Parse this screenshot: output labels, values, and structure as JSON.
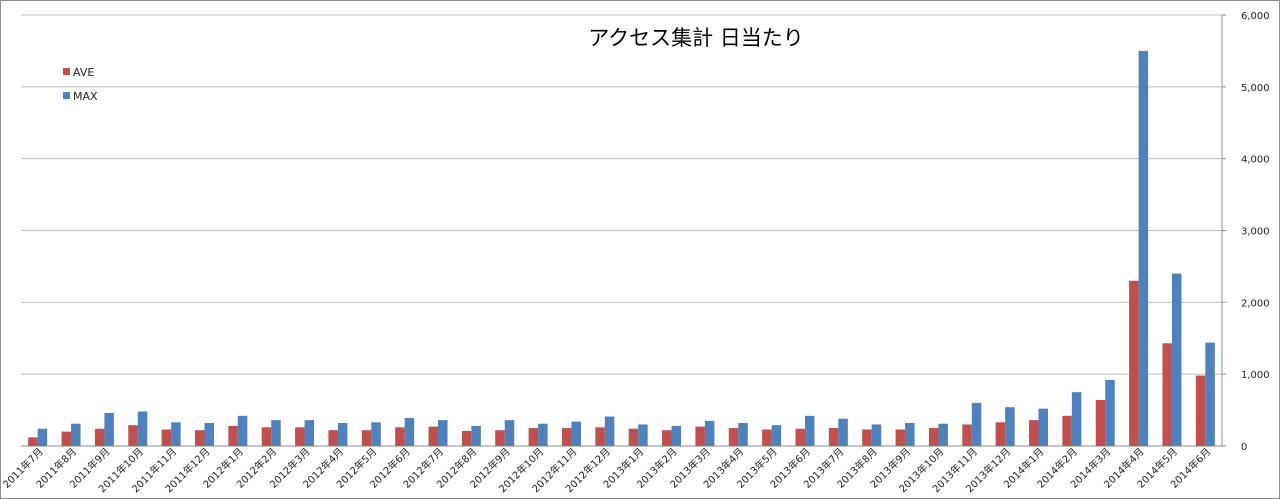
{
  "chart_data": {
    "type": "bar",
    "title": "アクセス集計 日当たり",
    "xlabel": "",
    "ylabel": "",
    "ylim": [
      0,
      6000
    ],
    "yticks": [
      "0",
      "1,000",
      "2,000",
      "3,000",
      "4,000",
      "5,000",
      "6,000"
    ],
    "ytick_values": [
      0,
      1000,
      2000,
      3000,
      4000,
      5000,
      6000
    ],
    "grid": true,
    "legend_position": "top-left",
    "categories": [
      "2011年7月",
      "2011年8月",
      "2011年9月",
      "2011年10月",
      "2011年11月",
      "2011年12月",
      "2012年1月",
      "2012年2月",
      "2012年3月",
      "2012年4月",
      "2012年5月",
      "2012年6月",
      "2012年7月",
      "2012年8月",
      "2012年9月",
      "2012年10月",
      "2012年11月",
      "2012年12月",
      "2013年1月",
      "2013年2月",
      "2013年3月",
      "2013年4月",
      "2013年5月",
      "2013年6月",
      "2013年7月",
      "2013年8月",
      "2013年9月",
      "2013年10月",
      "2013年11月",
      "2013年12月",
      "2014年1月",
      "2014年2月",
      "2014年3月",
      "2014年4月",
      "2014年5月",
      "2014年6月"
    ],
    "series": [
      {
        "name": "AVE",
        "color": "#c0504d",
        "values": [
          120,
          200,
          240,
          290,
          230,
          220,
          280,
          260,
          260,
          220,
          220,
          260,
          270,
          210,
          220,
          250,
          250,
          260,
          240,
          220,
          270,
          250,
          230,
          240,
          250,
          230,
          230,
          250,
          300,
          330,
          360,
          420,
          640,
          2300,
          1430,
          980
        ]
      },
      {
        "name": "MAX",
        "color": "#4f81bd",
        "values": [
          240,
          310,
          460,
          480,
          330,
          320,
          420,
          360,
          360,
          320,
          330,
          390,
          360,
          280,
          360,
          310,
          340,
          410,
          300,
          280,
          350,
          320,
          290,
          420,
          380,
          300,
          320,
          310,
          600,
          540,
          520,
          750,
          920,
          5500,
          2400,
          1440
        ]
      }
    ]
  }
}
